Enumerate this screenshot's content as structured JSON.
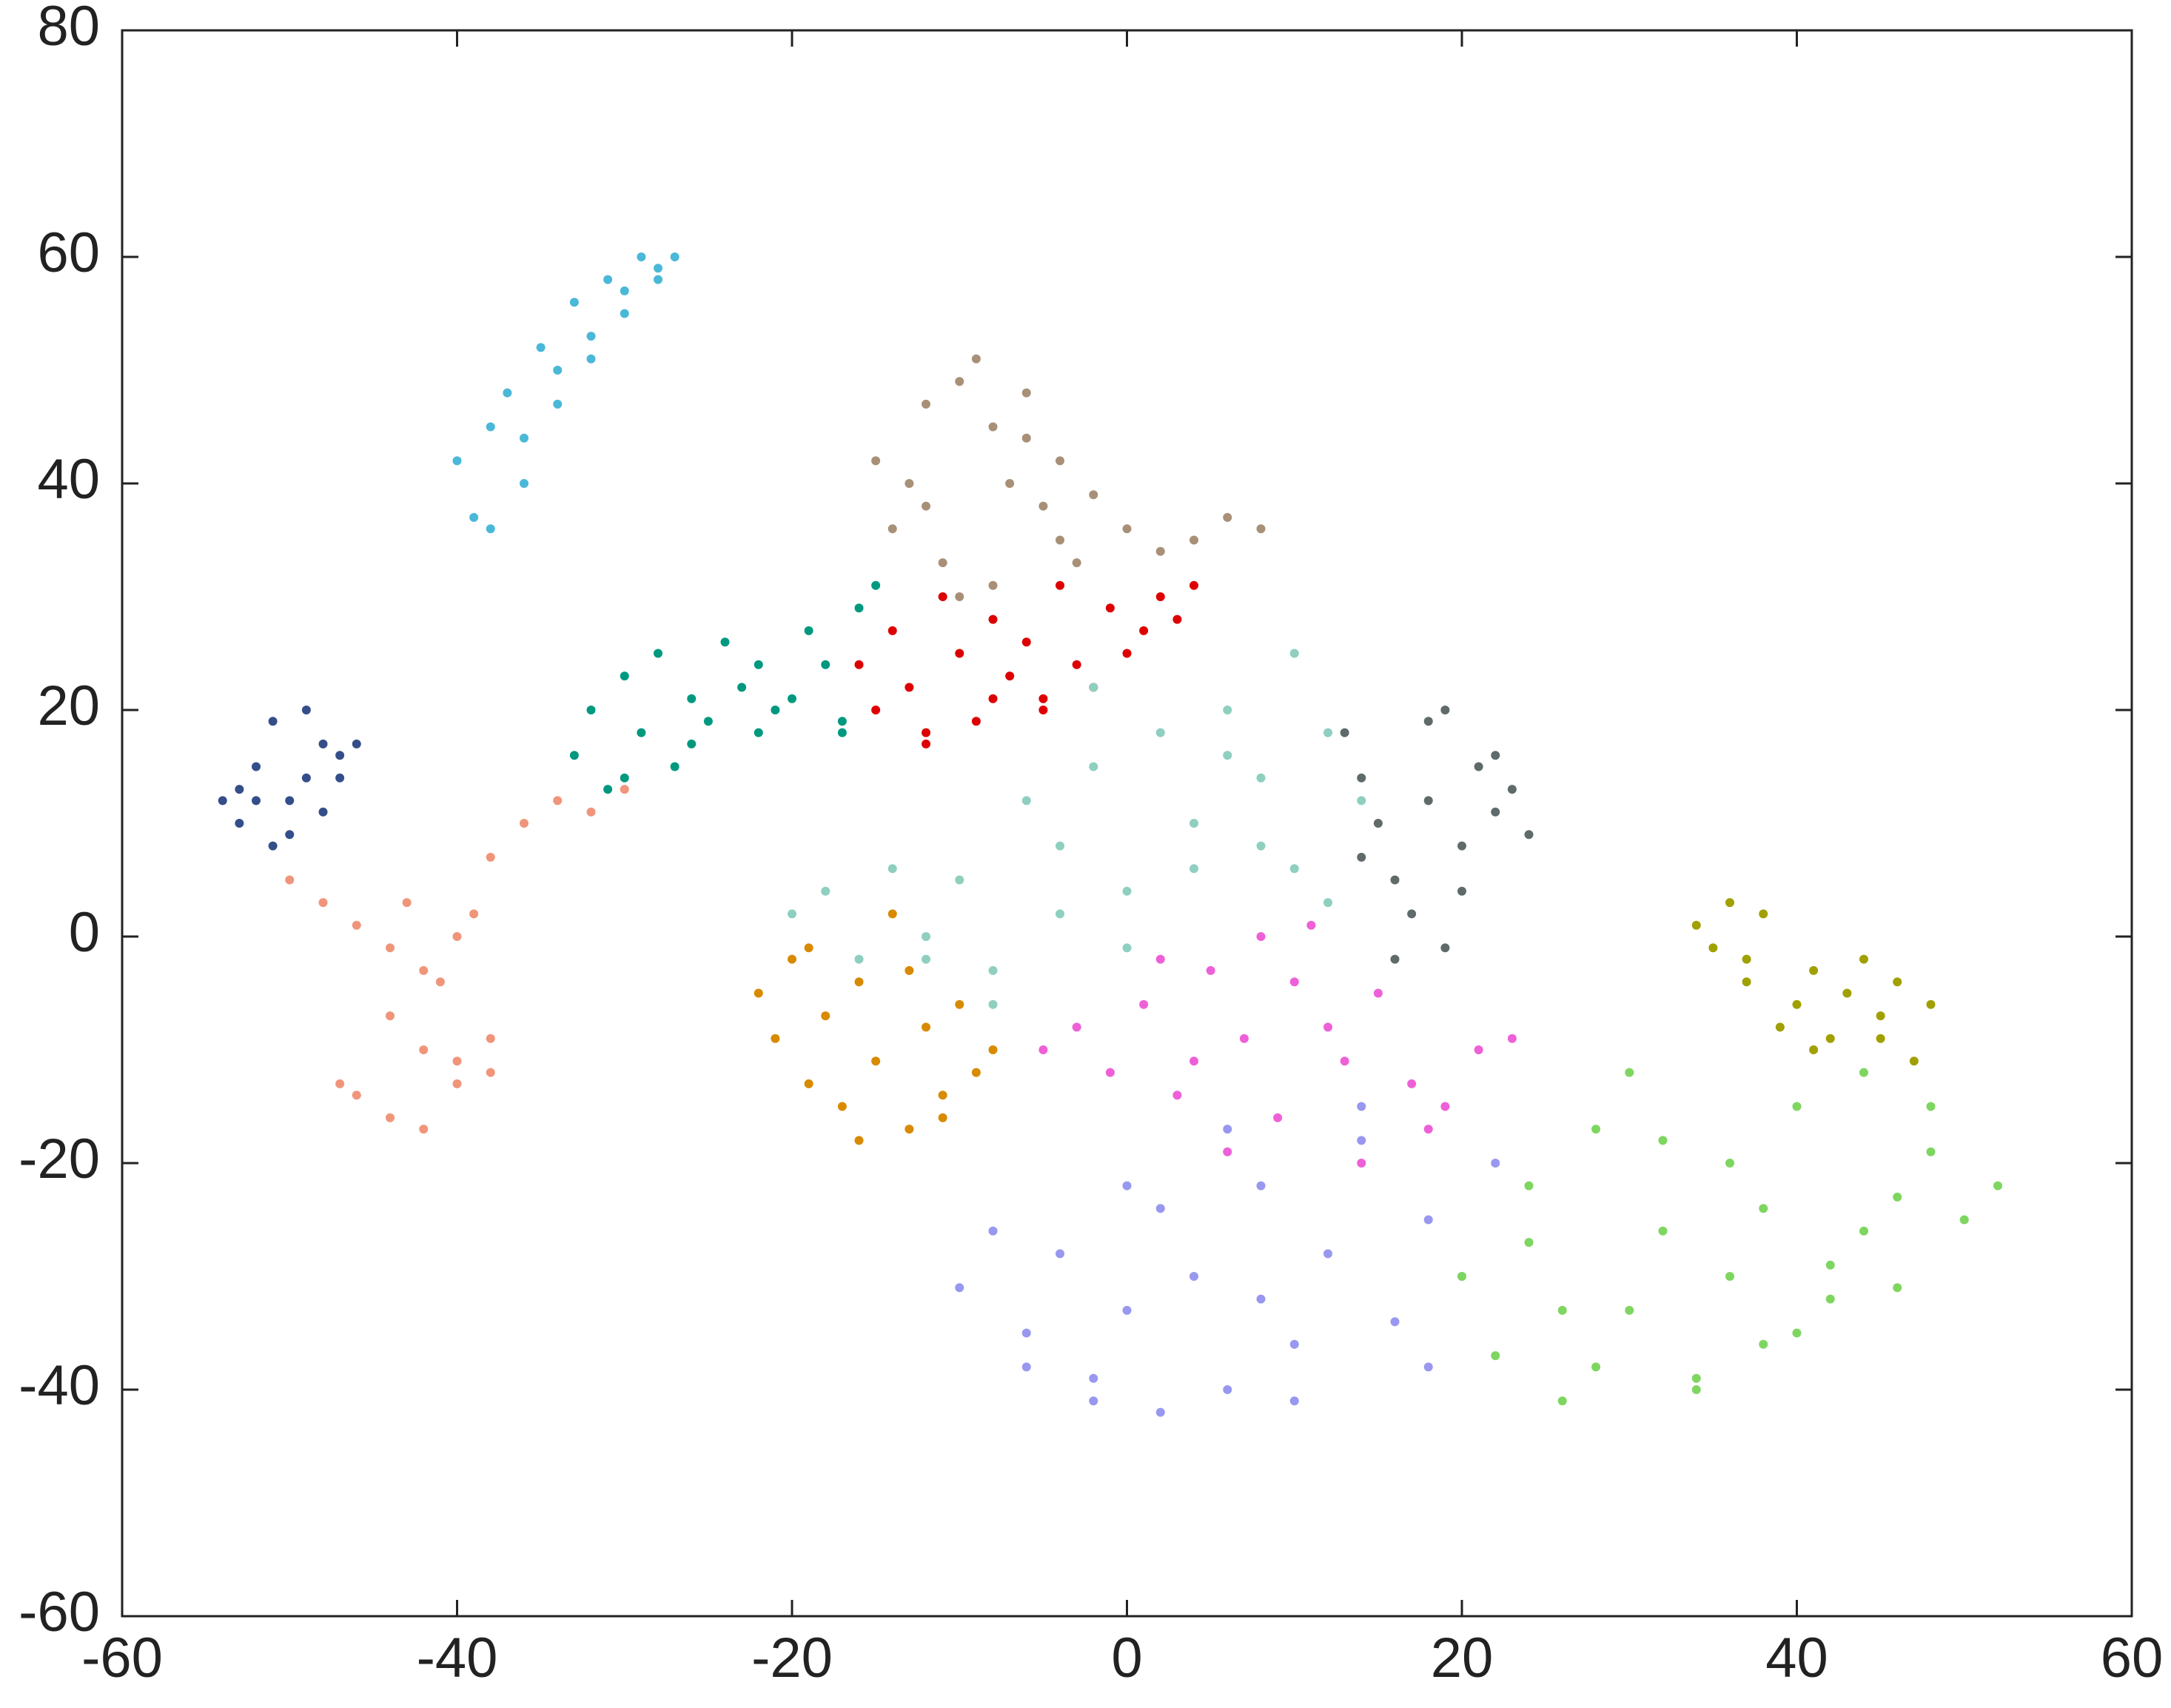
{
  "chart_data": {
    "type": "scatter",
    "xlim": [
      -60,
      60
    ],
    "ylim": [
      -60,
      80
    ],
    "xticks": [
      -60,
      -40,
      -20,
      0,
      20,
      40,
      60
    ],
    "yticks": [
      -60,
      -40,
      -20,
      0,
      20,
      40,
      60,
      80
    ],
    "series": [
      {
        "color": "#4ab8d8",
        "x": [
          -40,
          -39,
          -38,
          -37,
          -36,
          -35,
          -34,
          -33,
          -32,
          -31,
          -30,
          -29,
          -28,
          -27,
          -38,
          -36,
          -34,
          -32,
          -30,
          -28
        ],
        "y": [
          42,
          37,
          45,
          48,
          40,
          52,
          50,
          56,
          53,
          58,
          55,
          60,
          59,
          60,
          36,
          44,
          47,
          51,
          57,
          58
        ]
      },
      {
        "color": "#a89078",
        "x": [
          -15,
          -14,
          -13,
          -12,
          -11,
          -10,
          -9,
          -8,
          -7,
          -6,
          -5,
          -4,
          -3,
          -2,
          0,
          2,
          4,
          6,
          8,
          -10,
          -8,
          -12,
          -6,
          -4
        ],
        "y": [
          42,
          36,
          40,
          47,
          33,
          49,
          51,
          45,
          40,
          44,
          38,
          35,
          33,
          39,
          36,
          34,
          35,
          37,
          36,
          30,
          31,
          38,
          48,
          42
        ]
      },
      {
        "color": "#dd0000",
        "x": [
          -16,
          -15,
          -14,
          -13,
          -12,
          -11,
          -10,
          -9,
          -8,
          -7,
          -6,
          -5,
          -4,
          -3,
          -2,
          -1,
          0,
          1,
          2,
          3,
          4,
          -12,
          -8,
          -5
        ],
        "y": [
          24,
          20,
          27,
          22,
          17,
          30,
          25,
          19,
          28,
          23,
          26,
          21,
          31,
          24,
          22,
          29,
          25,
          27,
          30,
          28,
          31,
          18,
          21,
          20
        ]
      },
      {
        "color": "#009980",
        "x": [
          -33,
          -32,
          -31,
          -30,
          -29,
          -28,
          -27,
          -26,
          -25,
          -24,
          -23,
          -22,
          -21,
          -20,
          -19,
          -18,
          -17,
          -16,
          -15,
          -30,
          -26,
          -22,
          -17
        ],
        "y": [
          16,
          20,
          13,
          23,
          18,
          25,
          15,
          21,
          19,
          26,
          22,
          18,
          20,
          21,
          27,
          24,
          19,
          29,
          31,
          14,
          17,
          24,
          18
        ]
      },
      {
        "color": "#344e8a",
        "x": [
          -54,
          -53,
          -52,
          -51,
          -50,
          -49,
          -48,
          -47,
          -46,
          -53,
          -51,
          -50,
          -48,
          -47,
          -49,
          -52
        ],
        "y": [
          12,
          10,
          15,
          19,
          9,
          14,
          17,
          16,
          17,
          13,
          8,
          12,
          11,
          14,
          20,
          12
        ]
      },
      {
        "color": "#f0957a",
        "x": [
          -50,
          -48,
          -46,
          -44,
          -42,
          -40,
          -38,
          -36,
          -34,
          -32,
          -30,
          -44,
          -42,
          -40,
          -38,
          -46,
          -44,
          -42,
          -40,
          -38,
          -41,
          -43,
          -39,
          -47
        ],
        "y": [
          5,
          3,
          1,
          -1,
          -3,
          0,
          7,
          10,
          12,
          11,
          13,
          -7,
          -10,
          -13,
          -12,
          -14,
          -16,
          -17,
          -11,
          -9,
          -4,
          3,
          2,
          -13
        ]
      },
      {
        "color": "#8ecfc0",
        "x": [
          -20,
          -18,
          -16,
          -14,
          -12,
          -10,
          -8,
          -6,
          -4,
          -2,
          0,
          2,
          4,
          6,
          8,
          10,
          12,
          14,
          -8,
          -4,
          0,
          4,
          8,
          12,
          -2,
          6,
          10,
          -12
        ],
        "y": [
          2,
          4,
          -2,
          6,
          0,
          5,
          -6,
          12,
          8,
          15,
          4,
          18,
          10,
          20,
          14,
          25,
          18,
          12,
          -3,
          2,
          -1,
          6,
          8,
          3,
          22,
          16,
          6,
          -2
        ]
      },
      {
        "color": "#5f6b6a",
        "x": [
          13,
          14,
          15,
          16,
          17,
          18,
          19,
          20,
          21,
          22,
          23,
          24,
          16,
          18,
          20,
          22,
          14,
          19
        ],
        "y": [
          18,
          14,
          10,
          5,
          2,
          19,
          -1,
          8,
          15,
          11,
          13,
          9,
          -2,
          12,
          4,
          16,
          7,
          20
        ]
      },
      {
        "color": "#d88a00",
        "x": [
          -22,
          -21,
          -20,
          -19,
          -18,
          -17,
          -16,
          -15,
          -14,
          -13,
          -12,
          -11,
          -10,
          -9,
          -8,
          -19,
          -16,
          -13,
          -11
        ],
        "y": [
          -5,
          -9,
          -2,
          -13,
          -7,
          -15,
          -4,
          -11,
          2,
          -17,
          -8,
          -14,
          -6,
          -12,
          -10,
          -1,
          -18,
          -3,
          -16
        ]
      },
      {
        "color": "#ee60d8",
        "x": [
          -5,
          -3,
          -1,
          1,
          3,
          5,
          7,
          9,
          11,
          13,
          15,
          17,
          19,
          21,
          23,
          2,
          6,
          10,
          14,
          18,
          8,
          12,
          4
        ],
        "y": [
          -10,
          -8,
          -12,
          -6,
          -14,
          -3,
          -9,
          -16,
          1,
          -11,
          -5,
          -13,
          -15,
          -10,
          -9,
          -2,
          -19,
          -4,
          -20,
          -17,
          0,
          -8,
          -11
        ]
      },
      {
        "color": "#9898f0",
        "x": [
          -10,
          -8,
          -6,
          -4,
          -2,
          0,
          2,
          4,
          6,
          8,
          10,
          12,
          14,
          16,
          18,
          20,
          22,
          -6,
          -2,
          2,
          6,
          10,
          14,
          18,
          0,
          8
        ],
        "y": [
          -31,
          -26,
          -35,
          -28,
          -39,
          -33,
          -24,
          -30,
          -40,
          -22,
          -36,
          -28,
          -18,
          -34,
          -25,
          -30,
          -20,
          -38,
          -41,
          -42,
          -17,
          -41,
          -15,
          -38,
          -22,
          -32
        ]
      },
      {
        "color": "#7ed660",
        "x": [
          20,
          22,
          24,
          26,
          28,
          30,
          32,
          34,
          36,
          38,
          40,
          42,
          44,
          46,
          48,
          50,
          52,
          24,
          28,
          32,
          36,
          40,
          44,
          48,
          30,
          38,
          26,
          34,
          42,
          46
        ],
        "y": [
          -30,
          -37,
          -22,
          -41,
          -17,
          -33,
          -26,
          -39,
          -20,
          -36,
          -15,
          -29,
          -12,
          -23,
          -19,
          -25,
          -22,
          -27,
          -38,
          -18,
          -30,
          -35,
          -26,
          -15,
          -12,
          -24,
          -33,
          -40,
          -32,
          -31
        ]
      },
      {
        "color": "#a0a000",
        "x": [
          34,
          35,
          36,
          37,
          38,
          39,
          40,
          41,
          42,
          43,
          44,
          45,
          46,
          47,
          48,
          37,
          41,
          45
        ],
        "y": [
          1,
          -1,
          3,
          -4,
          2,
          -8,
          -6,
          -3,
          -9,
          -5,
          -2,
          -7,
          -4,
          -11,
          -6,
          -2,
          -10,
          -9
        ]
      }
    ]
  }
}
